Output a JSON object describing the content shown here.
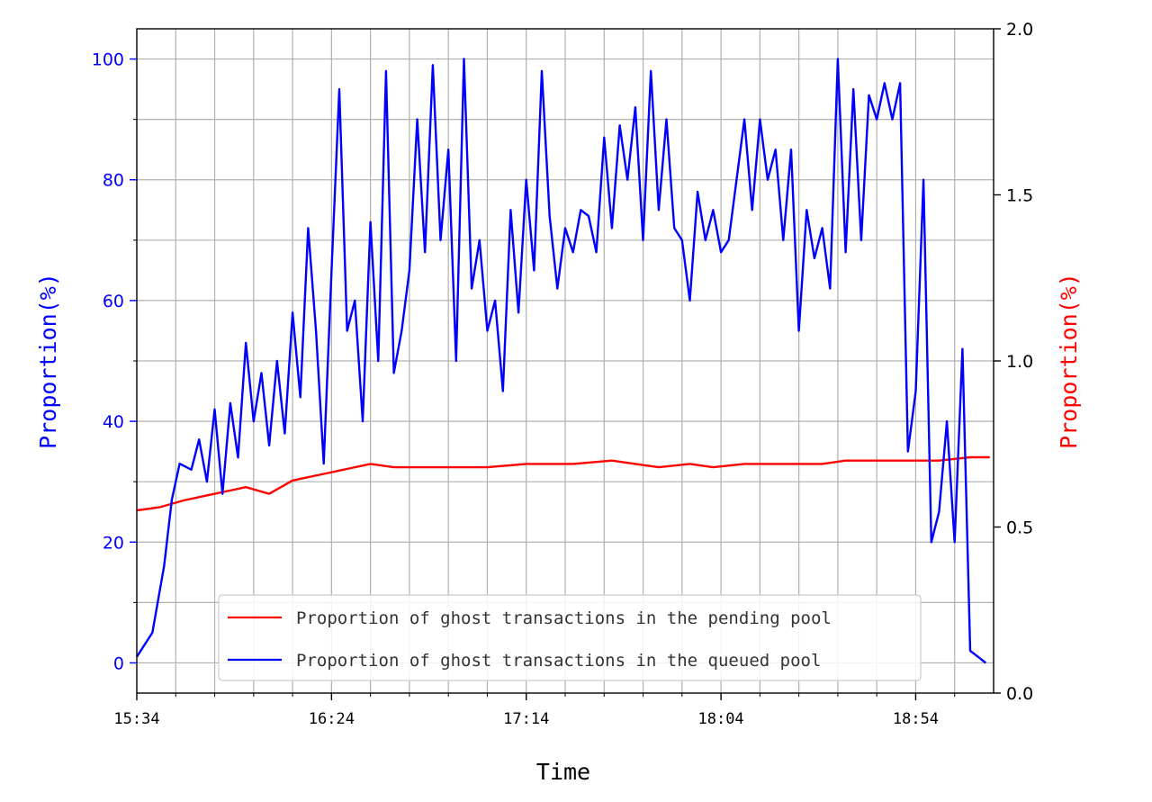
{
  "chart_data": {
    "type": "line",
    "xlabel": "Time",
    "ylabel_left": "Proportion(%)",
    "ylabel_right": "Proportion(%)",
    "x_ticks": [
      "15:34",
      "16:24",
      "17:14",
      "18:04",
      "18:54"
    ],
    "xlim": [
      0,
      220
    ],
    "ylim_left": [
      -5,
      105
    ],
    "ylim_right": [
      0,
      2.0
    ],
    "yticks_left": [
      0,
      20,
      40,
      60,
      80,
      100
    ],
    "yticks_right": [
      "0.0",
      "0.5",
      "1.0",
      "1.5",
      "2.0"
    ],
    "grid": true,
    "legend_position": "lower-center",
    "series": [
      {
        "name": "Proportion of ghost transactions in the pending pool",
        "axis": "right",
        "color": "#ff0000",
        "x": [
          0,
          6,
          12,
          20,
          28,
          34,
          40,
          48,
          52,
          60,
          66,
          74,
          80,
          90,
          100,
          104,
          112,
          122,
          128,
          134,
          142,
          148,
          156,
          166,
          176,
          182,
          192,
          200,
          206,
          214,
          219
        ],
        "y": [
          0.55,
          0.56,
          0.58,
          0.6,
          0.62,
          0.6,
          0.64,
          0.66,
          0.67,
          0.69,
          0.68,
          0.68,
          0.68,
          0.68,
          0.69,
          0.69,
          0.69,
          0.7,
          0.69,
          0.68,
          0.69,
          0.68,
          0.69,
          0.69,
          0.69,
          0.7,
          0.7,
          0.7,
          0.7,
          0.71,
          0.71
        ]
      },
      {
        "name": "Proportion of ghost transactions in the queued pool",
        "axis": "left",
        "color": "#0000ff",
        "x": [
          0,
          4,
          7,
          9,
          11,
          14,
          16,
          18,
          20,
          22,
          24,
          26,
          28,
          30,
          32,
          34,
          36,
          38,
          40,
          42,
          44,
          46,
          48,
          50,
          52,
          54,
          56,
          58,
          60,
          62,
          64,
          66,
          68,
          70,
          72,
          74,
          76,
          78,
          80,
          82,
          84,
          86,
          88,
          90,
          92,
          94,
          96,
          98,
          100,
          102,
          104,
          106,
          108,
          110,
          112,
          114,
          116,
          118,
          120,
          122,
          124,
          126,
          128,
          130,
          132,
          134,
          136,
          138,
          140,
          142,
          144,
          146,
          148,
          150,
          152,
          154,
          156,
          158,
          160,
          162,
          164,
          166,
          168,
          170,
          172,
          174,
          176,
          178,
          180,
          182,
          184,
          186,
          188,
          190,
          192,
          194,
          196,
          198,
          200,
          202,
          204,
          206,
          208,
          210,
          212,
          214,
          216,
          218
        ],
        "y": [
          1,
          5,
          16,
          27,
          33,
          32,
          37,
          30,
          42,
          28,
          43,
          34,
          53,
          40,
          48,
          36,
          50,
          38,
          58,
          44,
          72,
          55,
          33,
          65,
          95,
          55,
          60,
          40,
          73,
          50,
          98,
          48,
          55,
          65,
          90,
          68,
          99,
          70,
          85,
          50,
          100,
          62,
          70,
          55,
          60,
          45,
          75,
          58,
          80,
          65,
          98,
          74,
          62,
          72,
          68,
          75,
          74,
          68,
          87,
          72,
          89,
          80,
          92,
          70,
          98,
          75,
          90,
          72,
          70,
          60,
          78,
          70,
          75,
          68,
          70,
          80,
          90,
          75,
          90,
          80,
          85,
          70,
          85,
          55,
          75,
          67,
          72,
          62,
          100,
          68,
          95,
          70,
          94,
          90,
          96,
          90,
          96,
          35,
          45,
          80,
          20,
          25,
          40,
          20,
          52,
          2,
          1,
          0
        ]
      }
    ]
  }
}
